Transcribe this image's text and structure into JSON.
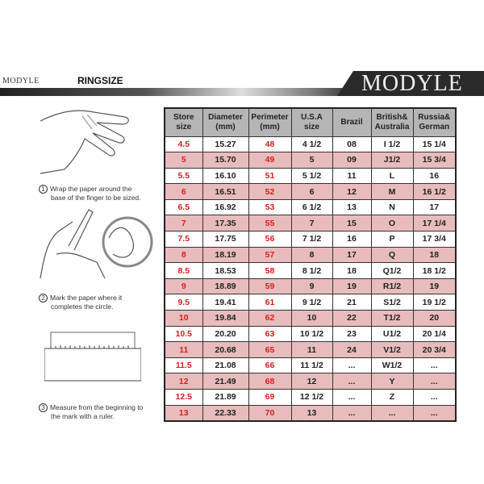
{
  "header": {
    "brand_small": "MODYLE",
    "title": "RINGSIZE",
    "logo": "MODYLE"
  },
  "steps": [
    {
      "num": "1",
      "line1": "Wrap the paper around the",
      "line2": "base of the finger to be sized."
    },
    {
      "num": "2",
      "line1": "Mark the paper where it",
      "line2": "completes the circle."
    },
    {
      "num": "3",
      "line1": "Measure from the beginning to",
      "line2": "the mark with a ruler."
    }
  ],
  "table": {
    "headers": [
      [
        "Store",
        "size"
      ],
      [
        "Diameter",
        "(mm)"
      ],
      [
        "Perimeter",
        "(mm)"
      ],
      [
        "U.S.A",
        "size"
      ],
      [
        "Brazil",
        ""
      ],
      [
        "British&",
        "Australia"
      ],
      [
        "Russia&",
        "German"
      ]
    ],
    "rows": [
      [
        "4.5",
        "15.27",
        "48",
        "4 1/2",
        "08",
        "I 1/2",
        "15 1/4"
      ],
      [
        "5",
        "15.70",
        "49",
        "5",
        "09",
        "J1/2",
        "15 3/4"
      ],
      [
        "5.5",
        "16.10",
        "51",
        "5 1/2",
        "11",
        "L",
        "16"
      ],
      [
        "6",
        "16.51",
        "52",
        "6",
        "12",
        "M",
        "16 1/2"
      ],
      [
        "6.5",
        "16.92",
        "53",
        "6 1/2",
        "13",
        "N",
        "17"
      ],
      [
        "7",
        "17.35",
        "55",
        "7",
        "15",
        "O",
        "17 1/4"
      ],
      [
        "7.5",
        "17.75",
        "56",
        "7 1/2",
        "16",
        "P",
        "17 3/4"
      ],
      [
        "8",
        "18.19",
        "57",
        "8",
        "17",
        "Q",
        "18"
      ],
      [
        "8.5",
        "18.53",
        "58",
        "8 1/2",
        "18",
        "Q1/2",
        "18 1/2"
      ],
      [
        "9",
        "18.89",
        "59",
        "9",
        "19",
        "R1/2",
        "19"
      ],
      [
        "9.5",
        "19.41",
        "61",
        "9 1/2",
        "21",
        "S1/2",
        "19 1/2"
      ],
      [
        "10",
        "19.84",
        "62",
        "10",
        "22",
        "T1/2",
        "20"
      ],
      [
        "10.5",
        "20.20",
        "63",
        "10 1/2",
        "23",
        "U1/2",
        "20 1/4"
      ],
      [
        "11",
        "20.68",
        "65",
        "11",
        "24",
        "V1/2",
        "20 3/4"
      ],
      [
        "11.5",
        "21.08",
        "66",
        "11 1/2",
        "...",
        "W1/2",
        "..."
      ],
      [
        "12",
        "21.49",
        "68",
        "12",
        "...",
        "Y",
        "..."
      ],
      [
        "12.5",
        "21.89",
        "69",
        "12 1/2",
        "...",
        "Z",
        "..."
      ],
      [
        "13",
        "22.33",
        "70",
        "13",
        "...",
        "...",
        "..."
      ]
    ]
  },
  "colors": {
    "pink_row": "#e8bcbc",
    "red_text": "#d42020",
    "header_bg": "#b5b5b5"
  }
}
